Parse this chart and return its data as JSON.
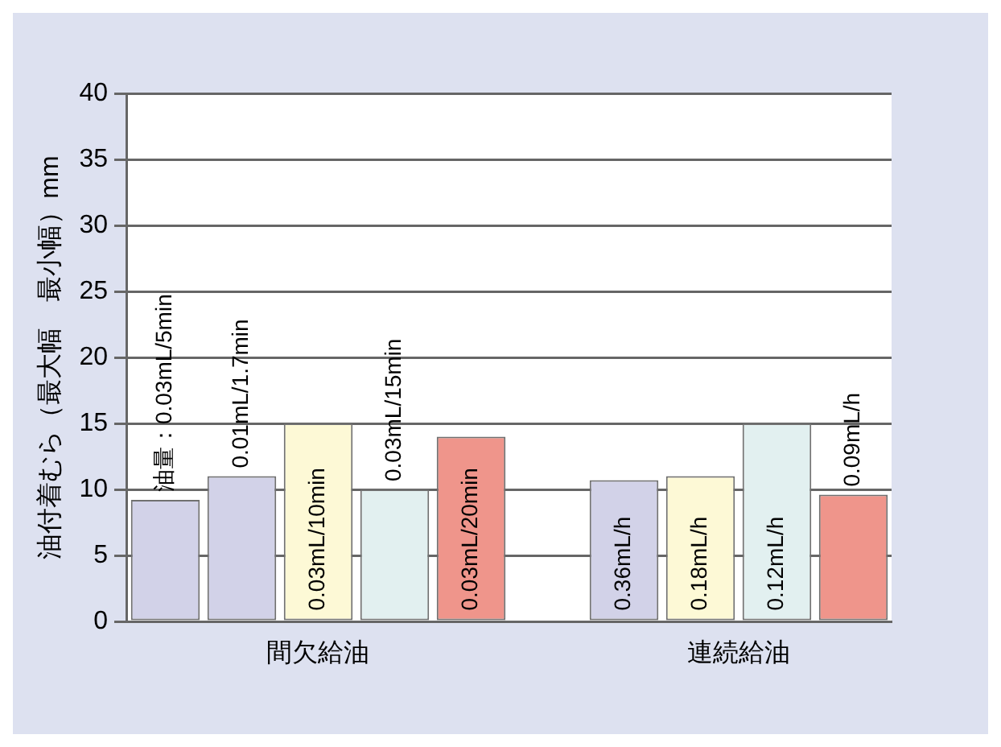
{
  "chart_data": {
    "type": "bar",
    "ylabel": "油付着むら（最大幅　最小幅）mm",
    "categories": [
      "油量：0.03mL/5min",
      "0.01mL/1.7min",
      "0.03mL/10min",
      "0.03mL/15min",
      "0.03mL/20min",
      null,
      "0.36mL/h",
      "0.18mL/h",
      "0.12mL/h",
      "0.09mL/h"
    ],
    "values": [
      9.2,
      11,
      15,
      10,
      14,
      null,
      10.7,
      11,
      15,
      9.6
    ],
    "colors": [
      "#d2d2e8",
      "#d2d2e8",
      "#fdf9d6",
      "#e2f0f0",
      "#ef958b",
      null,
      "#d2d2e8",
      "#fdf9d6",
      "#e2f0f0",
      "#ef958b"
    ],
    "annotations": [
      "間欠給油",
      "連続給油"
    ],
    "ylim": [
      0,
      40
    ],
    "yticks": [
      0,
      5,
      10,
      15,
      20,
      25,
      30,
      35,
      40
    ],
    "grid": "y",
    "legend": false
  }
}
